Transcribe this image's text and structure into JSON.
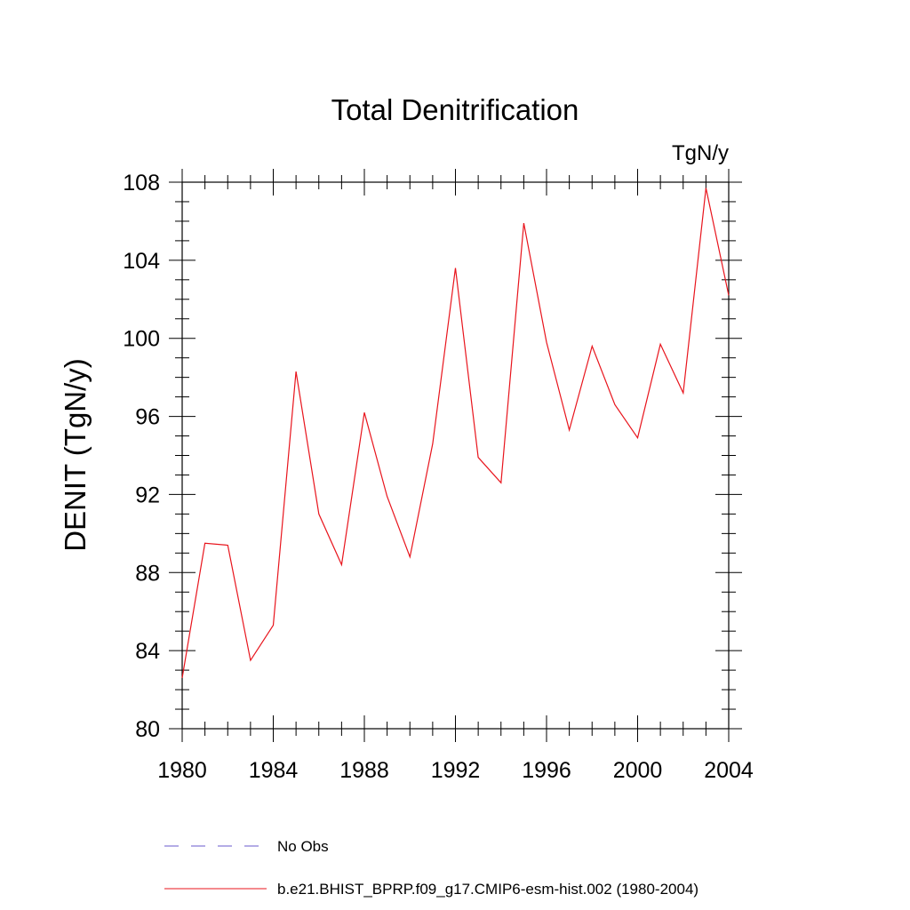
{
  "chart_data": {
    "type": "line",
    "title": "Total Denitrification",
    "units_label": "TgN/y",
    "xlabel": "",
    "ylabel": "DENIT  (TgN/y)",
    "xlim": [
      1980,
      2004
    ],
    "ylim": [
      80,
      108
    ],
    "x_ticks": [
      "1980",
      "1984",
      "1988",
      "1992",
      "1996",
      "2000",
      "2004"
    ],
    "y_ticks": [
      "80",
      "84",
      "88",
      "92",
      "96",
      "100",
      "104",
      "108"
    ],
    "grid": false,
    "legend_placement": "bottom",
    "series": [
      {
        "name": "b.e21.BHIST_BPRP.f09_g17.CMIP6-esm-hist.002 (1980-2004)",
        "color": "#e8141c",
        "style": "solid",
        "x": [
          1980,
          1981,
          1982,
          1983,
          1984,
          1985,
          1986,
          1987,
          1988,
          1989,
          1990,
          1991,
          1992,
          1993,
          1994,
          1995,
          1996,
          1997,
          1998,
          1999,
          2000,
          2001,
          2002,
          2003,
          2004
        ],
        "values": [
          82.6,
          89.5,
          89.4,
          83.5,
          85.3,
          98.3,
          91.0,
          88.4,
          96.2,
          91.9,
          88.8,
          94.6,
          103.6,
          93.9,
          92.6,
          105.9,
          99.8,
          95.3,
          99.6,
          96.6,
          94.9,
          99.7,
          97.2,
          107.7,
          102.2
        ]
      }
    ],
    "legend": [
      {
        "label": "No Obs",
        "color": "#6a5acd",
        "style": "dashed"
      },
      {
        "label": "b.e21.BHIST_BPRP.f09_g17.CMIP6-esm-hist.002 (1980-2004)",
        "color": "#e8141c",
        "style": "solid"
      }
    ]
  }
}
